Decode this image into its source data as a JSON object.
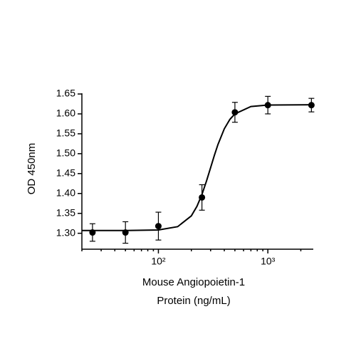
{
  "chart_data": {
    "type": "scatter",
    "xlabel": [
      "Mouse Angiopoietin-1",
      "Protein (ng/mL)"
    ],
    "ylabel": "OD 450nm",
    "xscale": "log",
    "xlim": [
      20,
      2600
    ],
    "xticks": [
      {
        "value": 100,
        "label": "10²"
      },
      {
        "value": 1000,
        "label": "10³"
      }
    ],
    "xminorticks": [
      20,
      30,
      40,
      50,
      60,
      70,
      80,
      90,
      200,
      300,
      400,
      500,
      600,
      700,
      800,
      900,
      2000
    ],
    "ylim": [
      1.26,
      1.65
    ],
    "yticks": [
      {
        "value": 1.3,
        "label": "1.30"
      },
      1.35,
      {
        "value": 1.4,
        "label": "1.40"
      },
      1.45,
      {
        "value": 1.5,
        "label": "1.50"
      },
      1.55,
      {
        "value": 1.6,
        "label": "1.60"
      },
      1.65
    ],
    "series": [
      {
        "color": "#000000",
        "x": [
          25,
          50,
          100,
          250,
          500,
          1000,
          2500
        ],
        "values": [
          1.302,
          1.302,
          1.318,
          1.39,
          1.604,
          1.622,
          1.622
        ],
        "errors": [
          0.022,
          0.027,
          0.035,
          0.032,
          0.025,
          0.022,
          0.017
        ]
      }
    ],
    "fit": {
      "color": "#000000",
      "x": [
        20,
        50,
        100,
        150,
        200,
        225,
        250,
        275,
        300,
        325,
        350,
        400,
        450,
        500,
        700,
        1000,
        2600
      ],
      "values": [
        1.307,
        1.307,
        1.3083,
        1.3166,
        1.3438,
        1.3677,
        1.3975,
        1.4312,
        1.465,
        1.4962,
        1.523,
        1.5625,
        1.5862,
        1.6,
        1.6185,
        1.6222,
        1.623
      ]
    }
  }
}
